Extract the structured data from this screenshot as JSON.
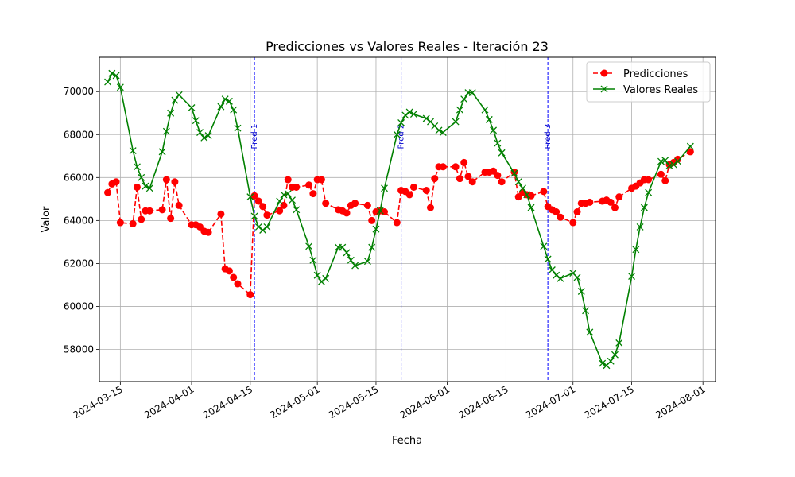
{
  "chart_data": {
    "type": "line",
    "title": "Predicciones vs Valores Reales - Iteración 23",
    "xlabel": "Fecha",
    "ylabel": "Valor",
    "x_range": [
      "2024-03-10",
      "2024-08-04"
    ],
    "ylim": [
      56500,
      71600
    ],
    "grid": true,
    "legend_position": "top-right",
    "x_ticks": [
      "2024-03-15",
      "2024-04-01",
      "2024-04-15",
      "2024-05-01",
      "2024-05-15",
      "2024-06-01",
      "2024-06-15",
      "2024-07-01",
      "2024-07-15",
      "2024-08-01"
    ],
    "y_ticks": [
      58000,
      60000,
      62000,
      64000,
      66000,
      68000,
      70000
    ],
    "vlines": [
      {
        "label": "Pred 1",
        "date": "2024-04-16"
      },
      {
        "label": "Pred 2",
        "date": "2024-05-21"
      },
      {
        "label": "Pred 3",
        "date": "2024-06-25"
      }
    ],
    "series": [
      {
        "name": "Predicciones",
        "color": "#ff0000",
        "style": "dashed",
        "marker": "circle",
        "points": [
          [
            "2024-03-12",
            65300
          ],
          [
            "2024-03-13",
            65700
          ],
          [
            "2024-03-14",
            65800
          ],
          [
            "2024-03-15",
            63900
          ],
          [
            "2024-03-18",
            63850
          ],
          [
            "2024-03-19",
            65550
          ],
          [
            "2024-03-20",
            64050
          ],
          [
            "2024-03-21",
            64450
          ],
          [
            "2024-03-22",
            64450
          ],
          [
            "2024-03-25",
            64500
          ],
          [
            "2024-03-26",
            65900
          ],
          [
            "2024-03-27",
            64100
          ],
          [
            "2024-03-28",
            65800
          ],
          [
            "2024-03-29",
            64700
          ],
          [
            "2024-04-01",
            63800
          ],
          [
            "2024-04-02",
            63800
          ],
          [
            "2024-04-03",
            63700
          ],
          [
            "2024-04-04",
            63500
          ],
          [
            "2024-04-05",
            63450
          ],
          [
            "2024-04-08",
            64300
          ],
          [
            "2024-04-09",
            61750
          ],
          [
            "2024-04-10",
            61650
          ],
          [
            "2024-04-11",
            61350
          ],
          [
            "2024-04-12",
            61050
          ],
          [
            "2024-04-15",
            60550
          ],
          [
            "2024-04-16",
            65150
          ],
          [
            "2024-04-17",
            64900
          ],
          [
            "2024-04-18",
            64650
          ],
          [
            "2024-04-19",
            64250
          ],
          [
            "2024-04-22",
            64450
          ],
          [
            "2024-04-23",
            64700
          ],
          [
            "2024-04-24",
            65900
          ],
          [
            "2024-04-25",
            65550
          ],
          [
            "2024-04-26",
            65550
          ],
          [
            "2024-04-29",
            65650
          ],
          [
            "2024-04-30",
            65250
          ],
          [
            "2024-05-01",
            65900
          ],
          [
            "2024-05-02",
            65900
          ],
          [
            "2024-05-03",
            64800
          ],
          [
            "2024-05-06",
            64500
          ],
          [
            "2024-05-07",
            64450
          ],
          [
            "2024-05-08",
            64350
          ],
          [
            "2024-05-09",
            64700
          ],
          [
            "2024-05-10",
            64800
          ],
          [
            "2024-05-13",
            64700
          ],
          [
            "2024-05-14",
            64000
          ],
          [
            "2024-05-15",
            64400
          ],
          [
            "2024-05-16",
            64450
          ],
          [
            "2024-05-17",
            64400
          ],
          [
            "2024-05-20",
            63900
          ],
          [
            "2024-05-21",
            65400
          ],
          [
            "2024-05-22",
            65350
          ],
          [
            "2024-05-23",
            65200
          ],
          [
            "2024-05-24",
            65550
          ],
          [
            "2024-05-27",
            65400
          ],
          [
            "2024-05-28",
            64600
          ],
          [
            "2024-05-29",
            65950
          ],
          [
            "2024-05-30",
            66500
          ],
          [
            "2024-05-31",
            66500
          ],
          [
            "2024-06-03",
            66500
          ],
          [
            "2024-06-04",
            65950
          ],
          [
            "2024-06-05",
            66700
          ],
          [
            "2024-06-06",
            66050
          ],
          [
            "2024-06-07",
            65800
          ],
          [
            "2024-06-10",
            66250
          ],
          [
            "2024-06-11",
            66250
          ],
          [
            "2024-06-12",
            66300
          ],
          [
            "2024-06-13",
            66100
          ],
          [
            "2024-06-14",
            65800
          ],
          [
            "2024-06-17",
            66250
          ],
          [
            "2024-06-18",
            65100
          ],
          [
            "2024-06-19",
            65300
          ],
          [
            "2024-06-20",
            65200
          ],
          [
            "2024-06-21",
            65150
          ],
          [
            "2024-06-24",
            65350
          ],
          [
            "2024-06-25",
            64650
          ],
          [
            "2024-06-26",
            64500
          ],
          [
            "2024-06-27",
            64400
          ],
          [
            "2024-06-28",
            64150
          ],
          [
            "2024-07-01",
            63900
          ],
          [
            "2024-07-02",
            64400
          ],
          [
            "2024-07-03",
            64800
          ],
          [
            "2024-07-04",
            64800
          ],
          [
            "2024-07-05",
            64850
          ],
          [
            "2024-07-08",
            64900
          ],
          [
            "2024-07-09",
            64950
          ],
          [
            "2024-07-10",
            64850
          ],
          [
            "2024-07-11",
            64600
          ],
          [
            "2024-07-12",
            65100
          ],
          [
            "2024-07-15",
            65500
          ],
          [
            "2024-07-16",
            65600
          ],
          [
            "2024-07-17",
            65750
          ],
          [
            "2024-07-18",
            65900
          ],
          [
            "2024-07-19",
            65900
          ],
          [
            "2024-07-22",
            66150
          ],
          [
            "2024-07-23",
            65850
          ],
          [
            "2024-07-24",
            66600
          ],
          [
            "2024-07-25",
            66700
          ],
          [
            "2024-07-26",
            66850
          ],
          [
            "2024-07-29",
            67200
          ]
        ]
      },
      {
        "name": "Valores Reales",
        "color": "#008000",
        "style": "solid",
        "marker": "x",
        "points": [
          [
            "2024-03-12",
            70450
          ],
          [
            "2024-03-13",
            70850
          ],
          [
            "2024-03-14",
            70750
          ],
          [
            "2024-03-15",
            70200
          ],
          [
            "2024-03-18",
            67250
          ],
          [
            "2024-03-19",
            66500
          ],
          [
            "2024-03-20",
            66000
          ],
          [
            "2024-03-21",
            65600
          ],
          [
            "2024-03-22",
            65500
          ],
          [
            "2024-03-25",
            67200
          ],
          [
            "2024-03-26",
            68150
          ],
          [
            "2024-03-27",
            69000
          ],
          [
            "2024-03-28",
            69600
          ],
          [
            "2024-03-29",
            69850
          ],
          [
            "2024-04-01",
            69250
          ],
          [
            "2024-04-02",
            68650
          ],
          [
            "2024-04-03",
            68100
          ],
          [
            "2024-04-04",
            67850
          ],
          [
            "2024-04-05",
            67950
          ],
          [
            "2024-04-08",
            69300
          ],
          [
            "2024-04-09",
            69650
          ],
          [
            "2024-04-10",
            69550
          ],
          [
            "2024-04-11",
            69150
          ],
          [
            "2024-04-12",
            68300
          ],
          [
            "2024-04-15",
            65100
          ],
          [
            "2024-04-16",
            64200
          ],
          [
            "2024-04-17",
            63700
          ],
          [
            "2024-04-18",
            63550
          ],
          [
            "2024-04-19",
            63700
          ],
          [
            "2024-04-22",
            64900
          ],
          [
            "2024-04-23",
            65200
          ],
          [
            "2024-04-24",
            65250
          ],
          [
            "2024-04-25",
            64950
          ],
          [
            "2024-04-26",
            64500
          ],
          [
            "2024-04-29",
            62800
          ],
          [
            "2024-04-30",
            62150
          ],
          [
            "2024-05-01",
            61450
          ],
          [
            "2024-05-02",
            61150
          ],
          [
            "2024-05-03",
            61300
          ],
          [
            "2024-05-06",
            62750
          ],
          [
            "2024-05-07",
            62750
          ],
          [
            "2024-05-08",
            62500
          ],
          [
            "2024-05-09",
            62150
          ],
          [
            "2024-05-10",
            61900
          ],
          [
            "2024-05-13",
            62100
          ],
          [
            "2024-05-14",
            62750
          ],
          [
            "2024-05-15",
            63600
          ],
          [
            "2024-05-16",
            64450
          ],
          [
            "2024-05-17",
            65500
          ],
          [
            "2024-05-20",
            68000
          ],
          [
            "2024-05-21",
            68550
          ],
          [
            "2024-05-22",
            68900
          ],
          [
            "2024-05-23",
            69050
          ],
          [
            "2024-05-24",
            68950
          ],
          [
            "2024-05-27",
            68750
          ],
          [
            "2024-05-28",
            68600
          ],
          [
            "2024-05-29",
            68400
          ],
          [
            "2024-05-30",
            68200
          ],
          [
            "2024-05-31",
            68100
          ],
          [
            "2024-06-03",
            68600
          ],
          [
            "2024-06-04",
            69150
          ],
          [
            "2024-06-05",
            69650
          ],
          [
            "2024-06-06",
            69950
          ],
          [
            "2024-06-07",
            69950
          ],
          [
            "2024-06-10",
            69150
          ],
          [
            "2024-06-11",
            68700
          ],
          [
            "2024-06-12",
            68200
          ],
          [
            "2024-06-13",
            67600
          ],
          [
            "2024-06-14",
            67150
          ],
          [
            "2024-06-17",
            66200
          ],
          [
            "2024-06-18",
            65800
          ],
          [
            "2024-06-19",
            65500
          ],
          [
            "2024-06-20",
            65200
          ],
          [
            "2024-06-21",
            64600
          ],
          [
            "2024-06-24",
            62800
          ],
          [
            "2024-06-25",
            62200
          ],
          [
            "2024-06-26",
            61700
          ],
          [
            "2024-06-27",
            61450
          ],
          [
            "2024-06-28",
            61300
          ],
          [
            "2024-07-01",
            61550
          ],
          [
            "2024-07-02",
            61350
          ],
          [
            "2024-07-03",
            60700
          ],
          [
            "2024-07-04",
            59800
          ],
          [
            "2024-07-05",
            58800
          ],
          [
            "2024-07-08",
            57350
          ],
          [
            "2024-07-09",
            57250
          ],
          [
            "2024-07-10",
            57450
          ],
          [
            "2024-07-11",
            57750
          ],
          [
            "2024-07-12",
            58300
          ],
          [
            "2024-07-15",
            61400
          ],
          [
            "2024-07-16",
            62650
          ],
          [
            "2024-07-17",
            63700
          ],
          [
            "2024-07-18",
            64600
          ],
          [
            "2024-07-19",
            65300
          ],
          [
            "2024-07-22",
            66750
          ],
          [
            "2024-07-23",
            66800
          ],
          [
            "2024-07-24",
            66550
          ],
          [
            "2024-07-25",
            66600
          ],
          [
            "2024-07-26",
            66750
          ],
          [
            "2024-07-29",
            67450
          ]
        ]
      }
    ]
  }
}
